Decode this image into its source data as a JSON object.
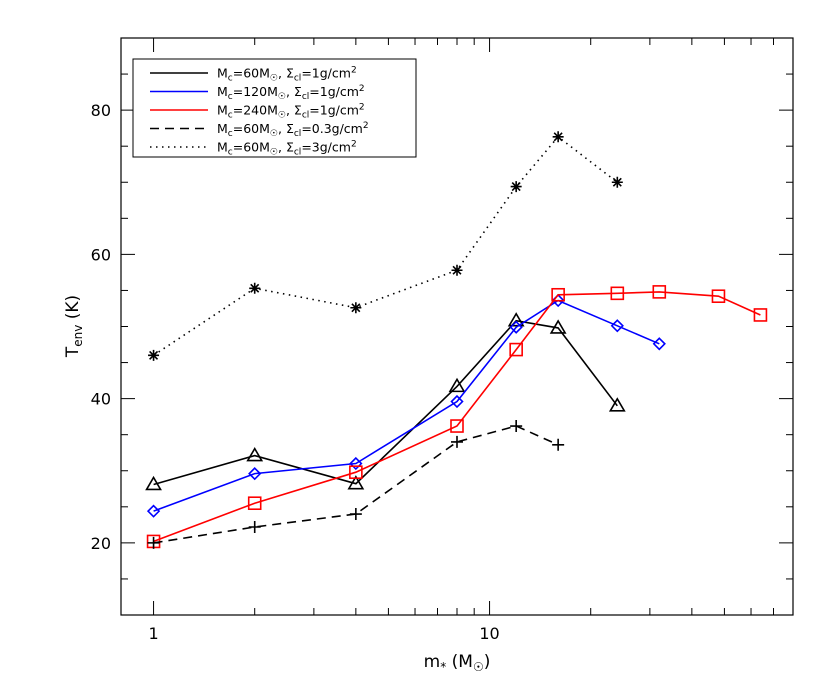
{
  "chart_data": {
    "type": "line",
    "xscale": "log",
    "xlim": [
      0.8,
      80
    ],
    "ylim": [
      10,
      90
    ],
    "x_ticks": [
      {
        "value": 1,
        "label": "1"
      },
      {
        "value": 10,
        "label": "10"
      }
    ],
    "x_minor_ticks": [
      2,
      3,
      4,
      5,
      6,
      7,
      8,
      9,
      20,
      30,
      40,
      50,
      60,
      70
    ],
    "y_ticks": [
      {
        "value": 20,
        "label": "20"
      },
      {
        "value": 40,
        "label": "40"
      },
      {
        "value": 60,
        "label": "60"
      },
      {
        "value": 80,
        "label": "80"
      }
    ],
    "y_minor_step": 5,
    "grid": false,
    "legend_position": "top-left",
    "xlabel": {
      "base": "m",
      "sub": "*",
      "unit_open": " (M",
      "unit_close": ")"
    },
    "ylabel": {
      "base": "T",
      "sub": "env",
      "unit": " (K)"
    },
    "series": [
      {
        "name": "Mc=60Msun, Σcl=1g/cm2",
        "legend_label": {
          "mass": "60",
          "sigma": "1"
        },
        "color": "#000000",
        "dash": "solid",
        "marker": "triangle",
        "x": [
          1,
          2,
          4,
          8,
          12,
          16,
          24
        ],
        "y": [
          28.1,
          32.1,
          28.2,
          41.7,
          50.8,
          49.8,
          39.0
        ]
      },
      {
        "name": "Mc=120Msun, Σcl=1g/cm2",
        "legend_label": {
          "mass": "120",
          "sigma": "1"
        },
        "color": "#0000ff",
        "dash": "solid",
        "marker": "diamond",
        "x": [
          1,
          2,
          4,
          8,
          12,
          16,
          24,
          32
        ],
        "y": [
          24.4,
          29.6,
          31.0,
          39.6,
          49.9,
          53.6,
          50.1,
          47.6
        ]
      },
      {
        "name": "Mc=240Msun, Σcl=1g/cm2",
        "legend_label": {
          "mass": "240",
          "sigma": "1"
        },
        "color": "#ff0000",
        "dash": "solid",
        "marker": "square",
        "x": [
          1,
          2,
          4,
          8,
          12,
          16,
          24,
          32,
          48,
          64
        ],
        "y": [
          20.2,
          25.5,
          29.8,
          36.2,
          46.8,
          54.4,
          54.6,
          54.8,
          54.2,
          51.6
        ]
      },
      {
        "name": "Mc=60Msun, Σcl=0.3g/cm2",
        "legend_label": {
          "mass": "60",
          "sigma": "0.3"
        },
        "color": "#000000",
        "dash": "dashed",
        "marker": "plus",
        "x": [
          1,
          2,
          4,
          8,
          12,
          16
        ],
        "y": [
          20.0,
          22.2,
          24.0,
          34.0,
          36.2,
          33.6
        ]
      },
      {
        "name": "Mc=60Msun, Σcl=3g/cm2",
        "legend_label": {
          "mass": "60",
          "sigma": "3"
        },
        "color": "#000000",
        "dash": "dotted",
        "marker": "asterisk",
        "x": [
          1,
          2,
          4,
          8,
          12,
          16,
          24
        ],
        "y": [
          46.0,
          55.3,
          52.6,
          57.8,
          69.4,
          76.3,
          70.0
        ]
      }
    ],
    "legend_template": {
      "M": "M",
      "c": "c",
      "eq": "=",
      "Msun": "M",
      "comma": ", ",
      "Sigma": "Σ",
      "cl": "cl",
      "unit": "g/cm",
      "exp": "2"
    }
  }
}
